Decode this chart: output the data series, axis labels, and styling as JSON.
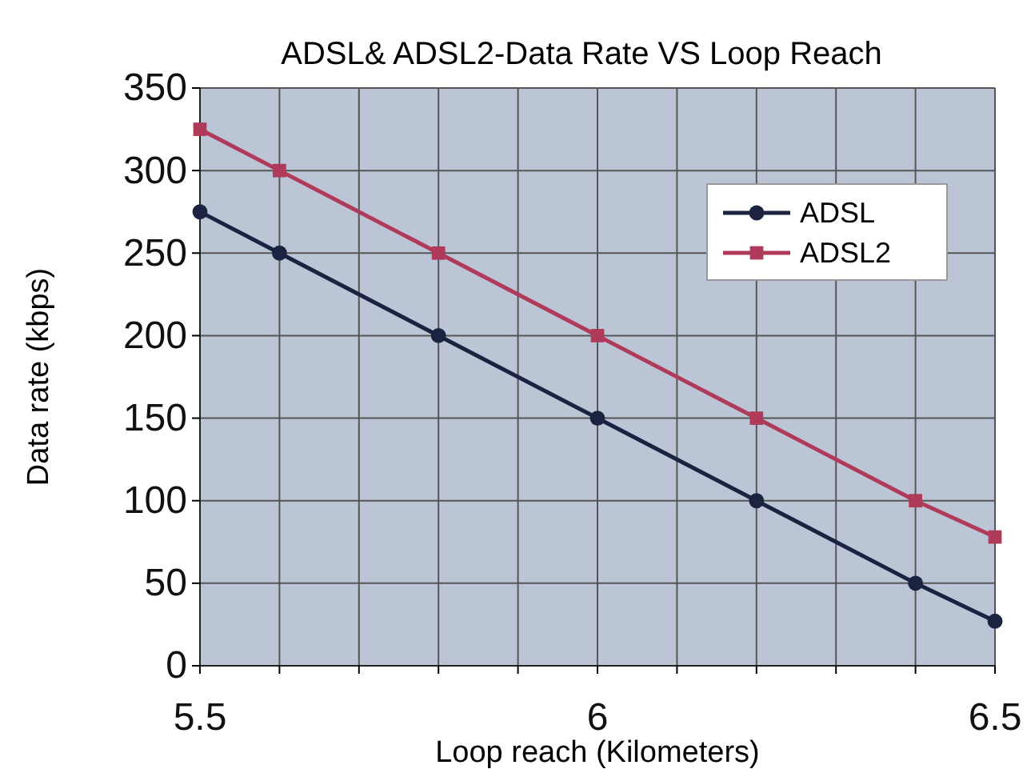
{
  "chart_data": {
    "type": "line",
    "title": "ADSL& ADSL2-Data Rate VS Loop Reach",
    "xlabel": "Loop reach (Kilometers)",
    "ylabel": "Data rate (kbps)",
    "x": [
      5.5,
      5.6,
      5.8,
      6.0,
      6.2,
      6.4,
      6.5
    ],
    "series": [
      {
        "name": "ADSL",
        "color": "#1c2340",
        "marker": "circle",
        "values": [
          275,
          250,
          200,
          150,
          100,
          50,
          27
        ]
      },
      {
        "name": "ADSL2",
        "color": "#b03a5a",
        "marker": "square",
        "values": [
          325,
          300,
          250,
          200,
          150,
          100,
          78
        ]
      }
    ],
    "xlim": [
      5.5,
      6.5
    ],
    "xticks": [
      5.5,
      {
        "value": 5.6,
        "label": null
      },
      {
        "value": 5.7,
        "label": null
      },
      {
        "value": 5.8,
        "label": null
      },
      {
        "value": 5.9,
        "label": null
      },
      6,
      {
        "value": 6.1,
        "label": null
      },
      {
        "value": 6.2,
        "label": null
      },
      {
        "value": 6.3,
        "label": null
      },
      {
        "value": 6.4,
        "label": null
      },
      6.5
    ],
    "ylim": [
      0,
      350
    ],
    "yticks": [
      0,
      50,
      100,
      150,
      200,
      250,
      300,
      350
    ],
    "grid": true,
    "legend": "top right"
  }
}
